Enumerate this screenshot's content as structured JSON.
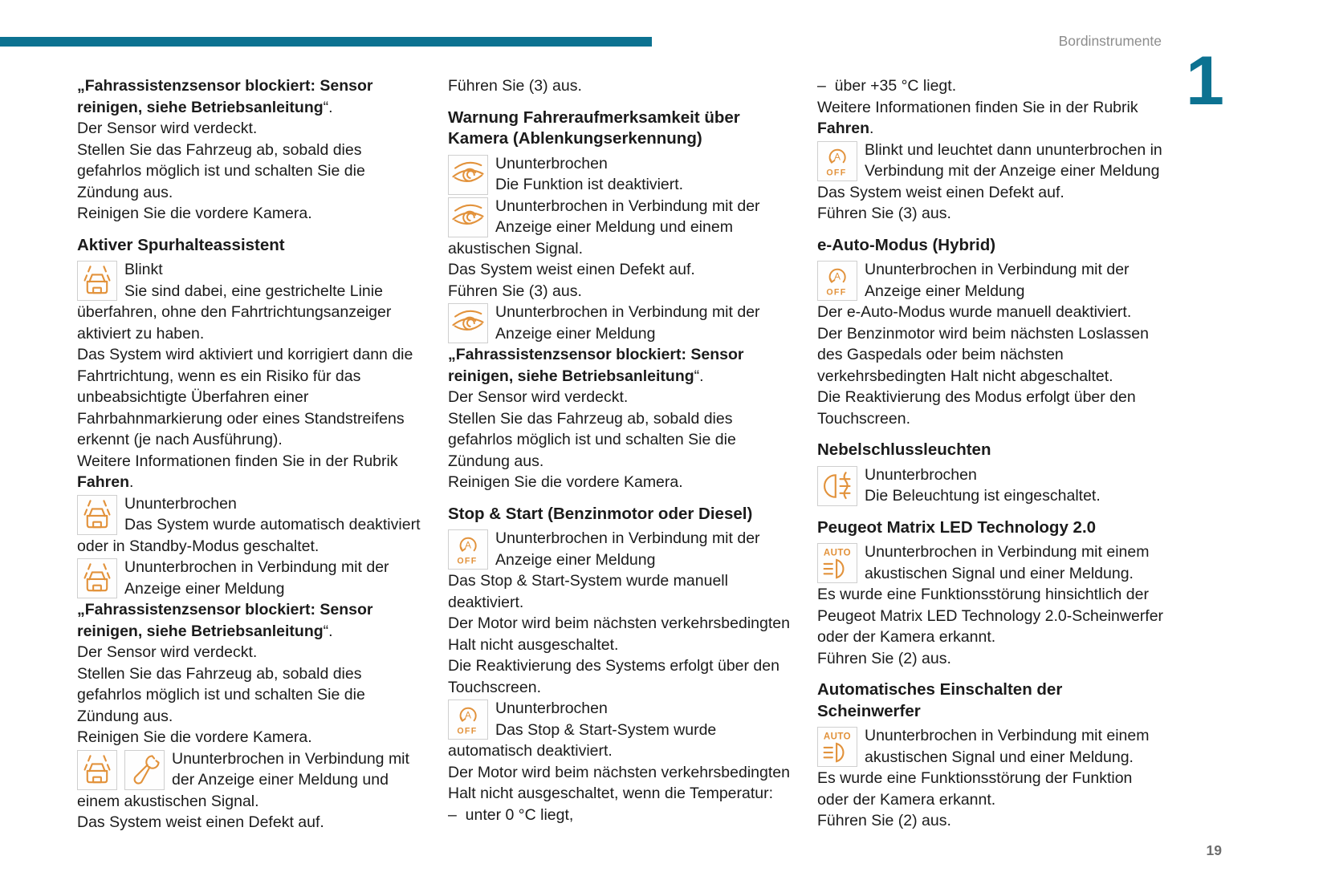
{
  "page": {
    "header": {
      "section_label": "Bordinstrumente",
      "chapter_number": "1"
    },
    "footer": {
      "page_number": "19"
    },
    "colors": {
      "accent_teal": "#0C7291",
      "icon_orange": "#E2923B",
      "body_text": "#1B1B1B"
    }
  },
  "columns": [
    {
      "blocks": [
        {
          "type": "para",
          "runs": [
            {
              "t": "„Fahrassistenzsensor blockiert: Sensor reinigen, siehe Betriebsanleitung",
              "b": true
            },
            {
              "t": "“.",
              "b": false
            }
          ]
        },
        {
          "type": "para",
          "runs": [
            {
              "t": "Der Sensor wird verdeckt.",
              "b": false
            }
          ]
        },
        {
          "type": "para",
          "runs": [
            {
              "t": "Stellen Sie das Fahrzeug ab, sobald dies gefahrlos möglich ist und schalten Sie die Zündung aus.",
              "b": false
            }
          ]
        },
        {
          "type": "para",
          "runs": [
            {
              "t": "Reinigen Sie die vordere Kamera.",
              "b": false
            }
          ]
        },
        {
          "type": "heading",
          "text": "Aktiver Spurhalteassistent"
        },
        {
          "type": "icon-row",
          "icons": [
            "lane-assist-icon"
          ],
          "status": "Blinkt",
          "body": [
            {
              "runs": [
                {
                  "t": "Sie sind dabei, eine gestrichelte Linie überfahren, ohne den Fahrtrichtungsanzeiger aktiviert zu haben.",
                  "b": false
                }
              ]
            },
            {
              "runs": [
                {
                  "t": "Das System wird aktiviert und korrigiert dann die Fahrtrichtung, wenn es ein Risiko für das unbeabsichtigte Überfahren einer Fahrbahnmarkierung oder eines Standstreifens erkennt (je nach Ausführung).",
                  "b": false
                }
              ]
            },
            {
              "runs": [
                {
                  "t": "Weitere Informationen finden Sie in der Rubrik ",
                  "b": false
                },
                {
                  "t": "Fahren",
                  "b": true
                },
                {
                  "t": ".",
                  "b": false
                }
              ]
            }
          ]
        },
        {
          "type": "icon-row",
          "icons": [
            "lane-assist-icon"
          ],
          "status": "Ununterbrochen",
          "body": [
            {
              "runs": [
                {
                  "t": "Das System wurde automatisch deaktiviert oder in Standby-Modus geschaltet.",
                  "b": false
                }
              ]
            }
          ]
        },
        {
          "type": "icon-row",
          "icons": [
            "lane-assist-icon"
          ],
          "status": "Ununterbrochen in Verbindung mit der Anzeige einer Meldung",
          "body": [
            {
              "runs": [
                {
                  "t": "„Fahrassistenzsensor blockiert: Sensor reinigen, siehe Betriebsanleitung",
                  "b": true
                },
                {
                  "t": "“.",
                  "b": false
                }
              ]
            },
            {
              "runs": [
                {
                  "t": "Der Sensor wird verdeckt.",
                  "b": false
                }
              ]
            },
            {
              "runs": [
                {
                  "t": "Stellen Sie das Fahrzeug ab, sobald dies gefahrlos möglich ist und schalten Sie die Zündung aus.",
                  "b": false
                }
              ]
            },
            {
              "runs": [
                {
                  "t": "Reinigen Sie die vordere Kamera.",
                  "b": false
                }
              ]
            }
          ]
        },
        {
          "type": "icon-row",
          "icons": [
            "lane-assist-icon",
            "wrench-icon"
          ],
          "status": "Ununterbrochen in Verbindung mit der Anzeige einer Meldung und einem akustischen Signal.",
          "body": [
            {
              "runs": [
                {
                  "t": "Das System weist einen Defekt auf.",
                  "b": false
                }
              ]
            }
          ]
        }
      ]
    },
    {
      "blocks": [
        {
          "type": "para",
          "runs": [
            {
              "t": "Führen Sie (3) aus.",
              "b": false
            }
          ]
        },
        {
          "type": "heading",
          "text": "Warnung Fahreraufmerksamkeit über Kamera (Ablenkungserkennung)"
        },
        {
          "type": "icon-row",
          "icons": [
            "driver-attention-eye-icon"
          ],
          "status": "Ununterbrochen",
          "body": [
            {
              "runs": [
                {
                  "t": "Die Funktion ist deaktiviert.",
                  "b": false
                }
              ]
            }
          ]
        },
        {
          "type": "icon-row",
          "icons": [
            "driver-attention-eye-icon"
          ],
          "status": "Ununterbrochen in Verbindung mit der Anzeige einer Meldung und einem akustischen Signal.",
          "body": [
            {
              "runs": [
                {
                  "t": "Das System weist einen Defekt auf.",
                  "b": false
                }
              ]
            },
            {
              "runs": [
                {
                  "t": "Führen Sie (3) aus.",
                  "b": false
                }
              ]
            }
          ]
        },
        {
          "type": "icon-row",
          "icons": [
            "driver-attention-eye-icon"
          ],
          "status": "Ununterbrochen in Verbindung mit der Anzeige einer Meldung",
          "body": [
            {
              "runs": [
                {
                  "t": "„Fahrassistenzsensor blockiert: Sensor reinigen, siehe Betriebsanleitung",
                  "b": true
                },
                {
                  "t": "“.",
                  "b": false
                }
              ]
            },
            {
              "runs": [
                {
                  "t": "Der Sensor wird verdeckt.",
                  "b": false
                }
              ]
            },
            {
              "runs": [
                {
                  "t": "Stellen Sie das Fahrzeug ab, sobald dies gefahrlos möglich ist und schalten Sie die Zündung aus.",
                  "b": false
                }
              ]
            },
            {
              "runs": [
                {
                  "t": "Reinigen Sie die vordere Kamera.",
                  "b": false
                }
              ]
            }
          ]
        },
        {
          "type": "heading",
          "text": "Stop & Start (Benzinmotor oder Diesel)"
        },
        {
          "type": "icon-row",
          "icons": [
            "stop-start-off-icon"
          ],
          "status": "Ununterbrochen in Verbindung mit der Anzeige einer Meldung",
          "body": [
            {
              "runs": [
                {
                  "t": "Das Stop & Start-System wurde manuell deaktiviert.",
                  "b": false
                }
              ]
            },
            {
              "runs": [
                {
                  "t": "Der Motor wird beim nächsten verkehrsbedingten Halt nicht ausgeschaltet.",
                  "b": false
                }
              ]
            },
            {
              "runs": [
                {
                  "t": "Die Reaktivierung des Systems erfolgt über den Touchscreen.",
                  "b": false
                }
              ]
            }
          ]
        },
        {
          "type": "icon-row",
          "icons": [
            "stop-start-off-icon"
          ],
          "status": "Ununterbrochen",
          "body": [
            {
              "runs": [
                {
                  "t": "Das Stop & Start-System wurde automatisch deaktiviert.",
                  "b": false
                }
              ]
            },
            {
              "runs": [
                {
                  "t": "Der Motor wird beim nächsten verkehrsbedingten Halt nicht ausgeschaltet, wenn die Temperatur:",
                  "b": false
                }
              ]
            },
            {
              "runs": [
                {
                  "t": "–  unter 0 °C liegt,",
                  "b": false
                }
              ]
            }
          ]
        }
      ]
    },
    {
      "blocks": [
        {
          "type": "para",
          "runs": [
            {
              "t": "–  über +35 °C liegt.",
              "b": false
            }
          ]
        },
        {
          "type": "para",
          "runs": [
            {
              "t": "Weitere Informationen finden Sie in der Rubrik ",
              "b": false
            },
            {
              "t": "Fahren",
              "b": true
            },
            {
              "t": ".",
              "b": false
            }
          ]
        },
        {
          "type": "icon-row",
          "icons": [
            "stop-start-off-icon"
          ],
          "status": "Blinkt und leuchtet dann ununterbrochen in Verbindung mit der Anzeige einer Meldung",
          "body": [
            {
              "runs": [
                {
                  "t": "Das System weist einen Defekt auf.",
                  "b": false
                }
              ]
            },
            {
              "runs": [
                {
                  "t": "Führen Sie (3) aus.",
                  "b": false
                }
              ]
            }
          ]
        },
        {
          "type": "heading",
          "text": "e-Auto-Modus (Hybrid)"
        },
        {
          "type": "icon-row",
          "icons": [
            "stop-start-off-icon"
          ],
          "status": "Ununterbrochen in Verbindung mit der Anzeige einer Meldung",
          "body": [
            {
              "runs": [
                {
                  "t": "Der e-Auto-Modus wurde manuell deaktiviert.",
                  "b": false
                }
              ]
            },
            {
              "runs": [
                {
                  "t": "Der Benzinmotor wird beim nächsten Loslassen des Gaspedals oder beim nächsten verkehrsbedingten Halt nicht abgeschaltet.",
                  "b": false
                }
              ]
            },
            {
              "runs": [
                {
                  "t": "Die Reaktivierung des Modus erfolgt über den Touchscreen.",
                  "b": false
                }
              ]
            }
          ]
        },
        {
          "type": "heading",
          "text": "Nebelschlussleuchten"
        },
        {
          "type": "icon-row",
          "icons": [
            "rear-fog-light-icon"
          ],
          "status": "Ununterbrochen",
          "body": [
            {
              "runs": [
                {
                  "t": "Die Beleuchtung ist eingeschaltet.",
                  "b": false
                }
              ]
            }
          ]
        },
        {
          "type": "heading",
          "text": "Peugeot Matrix LED Technology 2.0"
        },
        {
          "type": "icon-row",
          "icons": [
            "auto-headlight-icon"
          ],
          "status": "Ununterbrochen in Verbindung mit einem akustischen Signal und einer Meldung.",
          "body": [
            {
              "runs": [
                {
                  "t": "Es wurde eine Funktionsstörung hinsichtlich der Peugeot Matrix LED Technology 2.0-Scheinwerfer oder der Kamera erkannt.",
                  "b": false
                }
              ]
            },
            {
              "runs": [
                {
                  "t": "Führen Sie (2) aus.",
                  "b": false
                }
              ]
            }
          ]
        },
        {
          "type": "heading",
          "text": "Automatisches Einschalten der Scheinwerfer"
        },
        {
          "type": "icon-row",
          "icons": [
            "auto-headlight-icon"
          ],
          "status": "Ununterbrochen in Verbindung mit einem akustischen Signal und einer Meldung.",
          "body": [
            {
              "runs": [
                {
                  "t": "Es wurde eine Funktionsstörung der Funktion oder der Kamera erkannt.",
                  "b": false
                }
              ]
            },
            {
              "runs": [
                {
                  "t": "Führen Sie (2) aus.",
                  "b": false
                }
              ]
            }
          ]
        }
      ]
    }
  ]
}
